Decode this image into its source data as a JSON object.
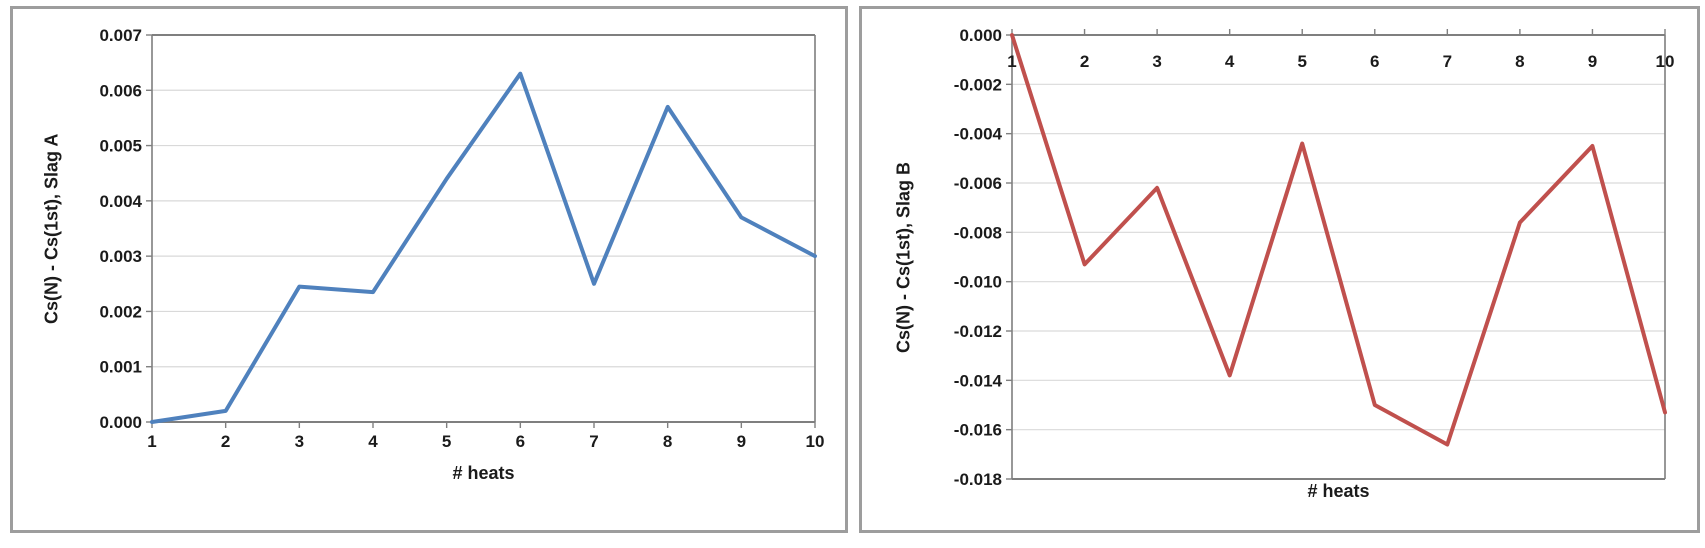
{
  "page": {
    "background": "#ffffff",
    "panel_border_color": "#9d9d9d"
  },
  "chart_data": [
    {
      "type": "line",
      "title": "",
      "ylabel": "Cs(N) - Cs(1st), Slag A",
      "xlabel": "# heats",
      "series_name": "Slag A",
      "line_color": "#4F81BD",
      "x": [
        1,
        2,
        3,
        4,
        5,
        6,
        7,
        8,
        9,
        10
      ],
      "values": [
        0.0,
        0.0002,
        0.00245,
        0.00235,
        0.0044,
        0.0063,
        0.0025,
        0.0057,
        0.0037,
        0.003
      ],
      "ylim": [
        0,
        0.007
      ],
      "ytick_labels": [
        "0.007",
        "0.006",
        "0.005",
        "0.004",
        "0.003",
        "0.002",
        "0.001",
        "0.000"
      ],
      "xtick_labels": [
        "1",
        "2",
        "3",
        "4",
        "5",
        "6",
        "7",
        "8",
        "9",
        "10"
      ],
      "x_axis_position": "bottom",
      "grid": true,
      "legend": "none",
      "gridline_color": "#d9d9d9",
      "axis_color": "#7f7f7f",
      "tick_label_color": "#1b1b1b"
    },
    {
      "type": "line",
      "title": "",
      "ylabel": "Cs(N) - Cs(1st), Slag B",
      "xlabel": "# heats",
      "series_name": "Slag B",
      "line_color": "#C0504D",
      "x": [
        1,
        2,
        3,
        4,
        5,
        6,
        7,
        8,
        9,
        10
      ],
      "values": [
        0.0,
        -0.0093,
        -0.0062,
        -0.0138,
        -0.0044,
        -0.015,
        -0.0166,
        -0.0076,
        -0.0045,
        -0.0153
      ],
      "ylim": [
        -0.018,
        0
      ],
      "ytick_labels": [
        "0.000",
        "-0.002",
        "-0.004",
        "-0.006",
        "-0.008",
        "-0.010",
        "-0.012",
        "-0.014",
        "-0.016",
        "-0.018"
      ],
      "xtick_labels": [
        "1",
        "2",
        "3",
        "4",
        "5",
        "6",
        "7",
        "8",
        "9",
        "10"
      ],
      "x_axis_position": "top",
      "grid": true,
      "legend": "none",
      "gridline_color": "#d9d9d9",
      "axis_color": "#7f7f7f",
      "tick_label_color": "#1b1b1b"
    }
  ]
}
